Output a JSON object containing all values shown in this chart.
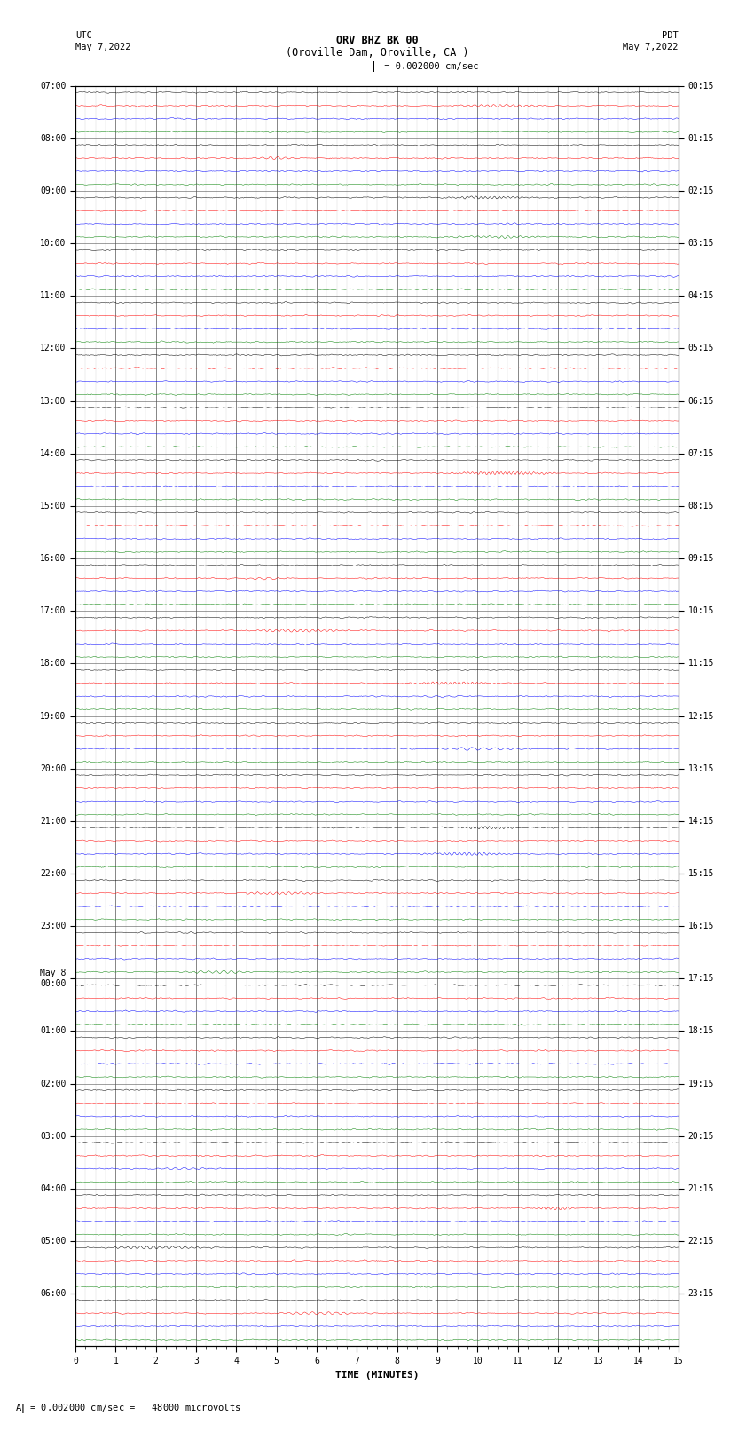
{
  "title_line1": "ORV BHZ BK 00",
  "title_line2": "(Oroville Dam, Oroville, CA )",
  "scale_label": "I = 0.002000 cm/sec",
  "footer_label": "A  = 0.002000 cm/sec =   48000 microvolts",
  "utc_label": "UTC",
  "utc_date": "May 7,2022",
  "pdt_label": "PDT",
  "pdt_date": "May 7,2022",
  "xlabel": "TIME (MINUTES)",
  "background_color": "#ffffff",
  "trace_colors": [
    "black",
    "red",
    "blue",
    "green"
  ],
  "minutes_per_row": 15,
  "left_labels": [
    "07:00",
    "08:00",
    "09:00",
    "10:00",
    "11:00",
    "12:00",
    "13:00",
    "14:00",
    "15:00",
    "16:00",
    "17:00",
    "18:00",
    "19:00",
    "20:00",
    "21:00",
    "22:00",
    "23:00",
    "May 8\n00:00",
    "01:00",
    "02:00",
    "03:00",
    "04:00",
    "05:00",
    "06:00"
  ],
  "right_labels": [
    "00:15",
    "01:15",
    "02:15",
    "03:15",
    "04:15",
    "05:15",
    "06:15",
    "07:15",
    "08:15",
    "09:15",
    "10:15",
    "11:15",
    "12:15",
    "13:15",
    "14:15",
    "15:15",
    "16:15",
    "17:15",
    "18:15",
    "19:15",
    "20:15",
    "21:15",
    "22:15",
    "23:15"
  ],
  "grid_minor_color": "#999999",
  "grid_major_color": "#555555",
  "trace_amplitude": 0.12,
  "noise_amplitude": 0.04,
  "rows_per_label": 4,
  "fig_width": 8.5,
  "fig_height": 16.13,
  "dpi": 100
}
